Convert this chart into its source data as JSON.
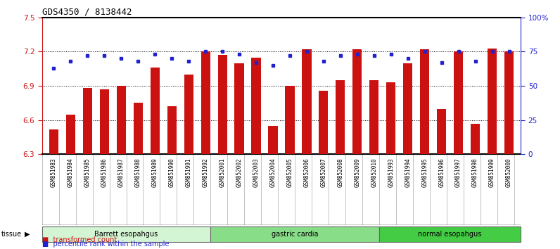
{
  "title": "GDS4350 / 8138442",
  "samples": [
    "GSM851983",
    "GSM851984",
    "GSM851985",
    "GSM851986",
    "GSM851987",
    "GSM851988",
    "GSM851989",
    "GSM851990",
    "GSM851991",
    "GSM851992",
    "GSM852001",
    "GSM852002",
    "GSM852003",
    "GSM852004",
    "GSM852005",
    "GSM852006",
    "GSM852007",
    "GSM852008",
    "GSM852009",
    "GSM852010",
    "GSM851993",
    "GSM851994",
    "GSM851995",
    "GSM851996",
    "GSM851997",
    "GSM851998",
    "GSM851999",
    "GSM852000"
  ],
  "red_values": [
    6.52,
    6.65,
    6.88,
    6.87,
    6.9,
    6.75,
    7.06,
    6.72,
    7.0,
    7.2,
    7.17,
    7.1,
    7.15,
    6.55,
    6.9,
    7.22,
    6.86,
    6.95,
    7.22,
    6.95,
    6.93,
    7.1,
    7.22,
    6.7,
    7.2,
    6.57,
    7.23,
    7.2
  ],
  "blue_values": [
    63,
    68,
    72,
    72,
    70,
    68,
    73,
    70,
    68,
    75,
    75,
    73,
    67,
    65,
    72,
    75,
    68,
    72,
    73,
    72,
    73,
    70,
    75,
    67,
    75,
    68,
    75,
    75
  ],
  "groups": [
    {
      "label": "Barrett esopahgus",
      "start": 0,
      "end": 10,
      "color": "#d4f5d4"
    },
    {
      "label": "gastric cardia",
      "start": 10,
      "end": 20,
      "color": "#88dd88"
    },
    {
      "label": "normal esopahgus",
      "start": 20,
      "end": 28,
      "color": "#44cc44"
    }
  ],
  "ylim_left": [
    6.3,
    7.5
  ],
  "ylim_right": [
    0,
    100
  ],
  "yticks_left": [
    6.3,
    6.6,
    6.9,
    7.2,
    7.5
  ],
  "yticks_right": [
    0,
    25,
    50,
    75,
    100
  ],
  "ytick_labels_right": [
    "0",
    "25",
    "50",
    "75",
    "100%"
  ],
  "hgrid_vals": [
    6.6,
    6.9,
    7.2
  ],
  "bar_color": "#cc1111",
  "dot_color": "#2222cc",
  "bar_width": 0.55,
  "xticklabel_bg": "#d4d4d4",
  "xticklabel_border": "#aaaaaa"
}
